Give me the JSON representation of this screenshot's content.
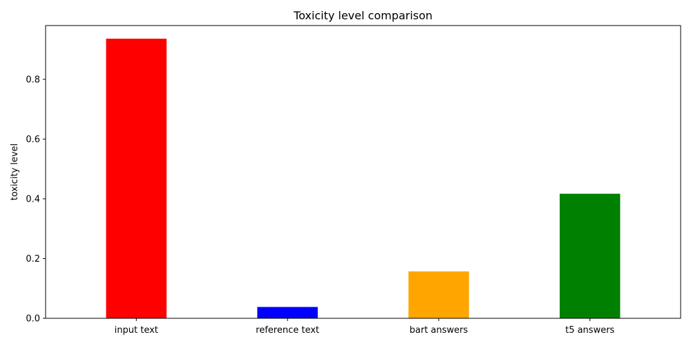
{
  "chart_data": {
    "type": "bar",
    "title": "Toxicity level comparison",
    "xlabel": "",
    "ylabel": "toxicity level",
    "categories": [
      "input text",
      "reference text",
      "bart answers",
      "t5 answers"
    ],
    "values": [
      0.936,
      0.038,
      0.157,
      0.417
    ],
    "colors": [
      "#ff0000",
      "#0000ff",
      "#ffa500",
      "#008000"
    ],
    "ylim": [
      0,
      0.98
    ],
    "yticks": [
      0.0,
      0.2,
      0.4,
      0.6,
      0.8
    ],
    "ytick_labels": [
      "0.0",
      "0.2",
      "0.4",
      "0.6",
      "0.8"
    ],
    "grid": false,
    "legend": "none"
  }
}
